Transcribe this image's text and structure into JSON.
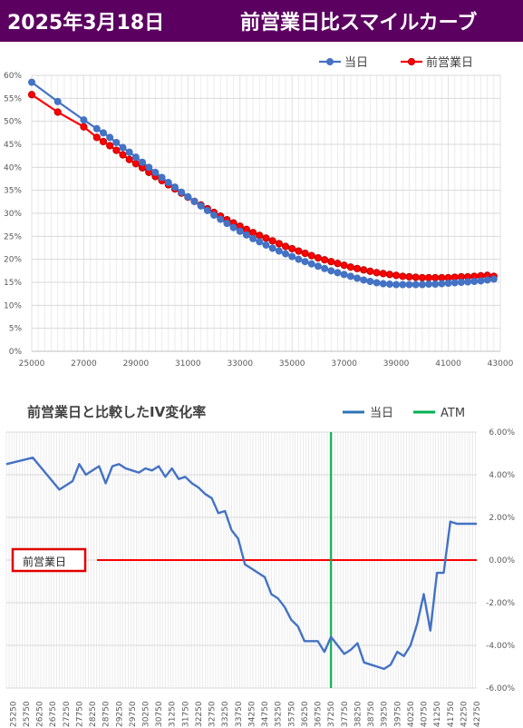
{
  "header": {
    "date": "2025年3月18日",
    "title": "前営業日比スマイルカーブ"
  },
  "colors": {
    "title_bg": "#5b0060",
    "today": "#4472c4",
    "prev_day": "#ff0000",
    "atm": "#00b050",
    "zero_line": "#ff0000"
  },
  "chart_data": [
    {
      "type": "line",
      "title": "",
      "legend": [
        "当日",
        "前営業日"
      ],
      "legend_position": "top-right",
      "grid": true,
      "xlim": [
        25000,
        43000
      ],
      "ylim": [
        0,
        0.6
      ],
      "x_ticks": [
        "25000",
        "27000",
        "29000",
        "31000",
        "33000",
        "35000",
        "37000",
        "39000",
        "41000",
        "43000"
      ],
      "y_ticks": [
        "0%",
        "5%",
        "10%",
        "15%",
        "20%",
        "25%",
        "30%",
        "35%",
        "40%",
        "45%",
        "50%",
        "55%",
        "60%"
      ],
      "x": [
        25000,
        26000,
        27000,
        27500,
        27750,
        28000,
        28250,
        28500,
        28750,
        29000,
        29250,
        29500,
        29750,
        30000,
        30250,
        30500,
        30750,
        31000,
        31250,
        31500,
        31750,
        32000,
        32250,
        32500,
        32750,
        33000,
        33250,
        33500,
        33750,
        34000,
        34250,
        34500,
        34750,
        35000,
        35250,
        35500,
        35750,
        36000,
        36250,
        36500,
        36750,
        37000,
        37250,
        37500,
        37750,
        38000,
        38250,
        38500,
        38750,
        39000,
        39250,
        39500,
        39750,
        40000,
        40250,
        40500,
        40750,
        41000,
        41250,
        41500,
        41750,
        42000,
        42250,
        42500,
        42750
      ],
      "series": [
        {
          "name": "当日",
          "values": [
            0.585,
            0.543,
            0.503,
            0.484,
            0.475,
            0.465,
            0.454,
            0.443,
            0.433,
            0.422,
            0.411,
            0.4,
            0.389,
            0.378,
            0.367,
            0.357,
            0.346,
            0.336,
            0.326,
            0.316,
            0.306,
            0.296,
            0.287,
            0.278,
            0.269,
            0.261,
            0.253,
            0.245,
            0.238,
            0.231,
            0.224,
            0.218,
            0.212,
            0.206,
            0.2,
            0.195,
            0.19,
            0.185,
            0.18,
            0.175,
            0.171,
            0.167,
            0.163,
            0.159,
            0.155,
            0.152,
            0.149,
            0.147,
            0.146,
            0.145,
            0.145,
            0.145,
            0.145,
            0.145,
            0.146,
            0.146,
            0.147,
            0.148,
            0.149,
            0.15,
            0.151,
            0.152,
            0.153,
            0.155,
            0.157
          ]
        },
        {
          "name": "前営業日",
          "values": [
            0.558,
            0.52,
            0.488,
            0.465,
            0.456,
            0.447,
            0.437,
            0.427,
            0.417,
            0.408,
            0.399,
            0.389,
            0.38,
            0.371,
            0.362,
            0.353,
            0.344,
            0.335,
            0.326,
            0.318,
            0.31,
            0.302,
            0.294,
            0.286,
            0.279,
            0.272,
            0.265,
            0.258,
            0.252,
            0.246,
            0.24,
            0.234,
            0.228,
            0.223,
            0.218,
            0.213,
            0.208,
            0.203,
            0.199,
            0.195,
            0.191,
            0.187,
            0.183,
            0.18,
            0.177,
            0.174,
            0.171,
            0.169,
            0.167,
            0.165,
            0.163,
            0.162,
            0.161,
            0.16,
            0.16,
            0.16,
            0.16,
            0.16,
            0.161,
            0.162,
            0.162,
            0.163,
            0.164,
            0.165,
            0.163
          ]
        }
      ]
    },
    {
      "type": "line",
      "title": "前営業日と比較したIV変化率",
      "legend": [
        "当日",
        "ATM"
      ],
      "legend_position": "top-right",
      "grid": true,
      "ylim": [
        -0.06,
        0.06
      ],
      "y_ticks": [
        "-6.00%",
        "-4.00%",
        "-2.00%",
        "0.00%",
        "2.00%",
        "4.00%",
        "6.00%"
      ],
      "x_ticks": [
        "25250",
        "25750",
        "26250",
        "26750",
        "27250",
        "27750",
        "28250",
        "28750",
        "29250",
        "29750",
        "30250",
        "30750",
        "31250",
        "31750",
        "32250",
        "32750",
        "33250",
        "33750",
        "34250",
        "34750",
        "35250",
        "35750",
        "36250",
        "36750",
        "37250",
        "37750",
        "38250",
        "38750",
        "39250",
        "39750",
        "40250",
        "40750",
        "41250",
        "41750",
        "42250",
        "42750"
      ],
      "atm_x": 37250,
      "zero_label": "前営業日",
      "x": [
        25000,
        26000,
        27000,
        27500,
        27750,
        28000,
        28250,
        28500,
        28750,
        29000,
        29250,
        29500,
        29750,
        30000,
        30250,
        30500,
        30750,
        31000,
        31250,
        31500,
        31750,
        32000,
        32250,
        32500,
        32750,
        33000,
        33250,
        33500,
        33750,
        34000,
        34250,
        34500,
        34750,
        35000,
        35250,
        35500,
        35750,
        36000,
        36250,
        36500,
        36750,
        37000,
        37250,
        37500,
        37750,
        38000,
        38250,
        38500,
        38750,
        39000,
        39250,
        39500,
        39750,
        40000,
        40250,
        40500,
        40750,
        41000,
        41250,
        41500,
        41750,
        42000,
        42250,
        42500,
        42750
      ],
      "series": [
        {
          "name": "当日",
          "values": [
            0.045,
            0.048,
            0.033,
            0.037,
            0.045,
            0.04,
            0.042,
            0.044,
            0.036,
            0.044,
            0.045,
            0.043,
            0.042,
            0.041,
            0.043,
            0.042,
            0.044,
            0.039,
            0.043,
            0.038,
            0.039,
            0.036,
            0.034,
            0.031,
            0.029,
            0.022,
            0.023,
            0.014,
            0.01,
            -0.002,
            -0.004,
            -0.006,
            -0.008,
            -0.016,
            -0.018,
            -0.022,
            -0.028,
            -0.031,
            -0.038,
            -0.038,
            -0.038,
            -0.043,
            -0.036,
            -0.04,
            -0.044,
            -0.042,
            -0.039,
            -0.048,
            -0.049,
            -0.05,
            -0.051,
            -0.049,
            -0.043,
            -0.045,
            -0.04,
            -0.03,
            -0.016,
            -0.033,
            -0.006,
            -0.006,
            0.018,
            0.017,
            0.017,
            0.017,
            0.017
          ]
        }
      ]
    }
  ]
}
